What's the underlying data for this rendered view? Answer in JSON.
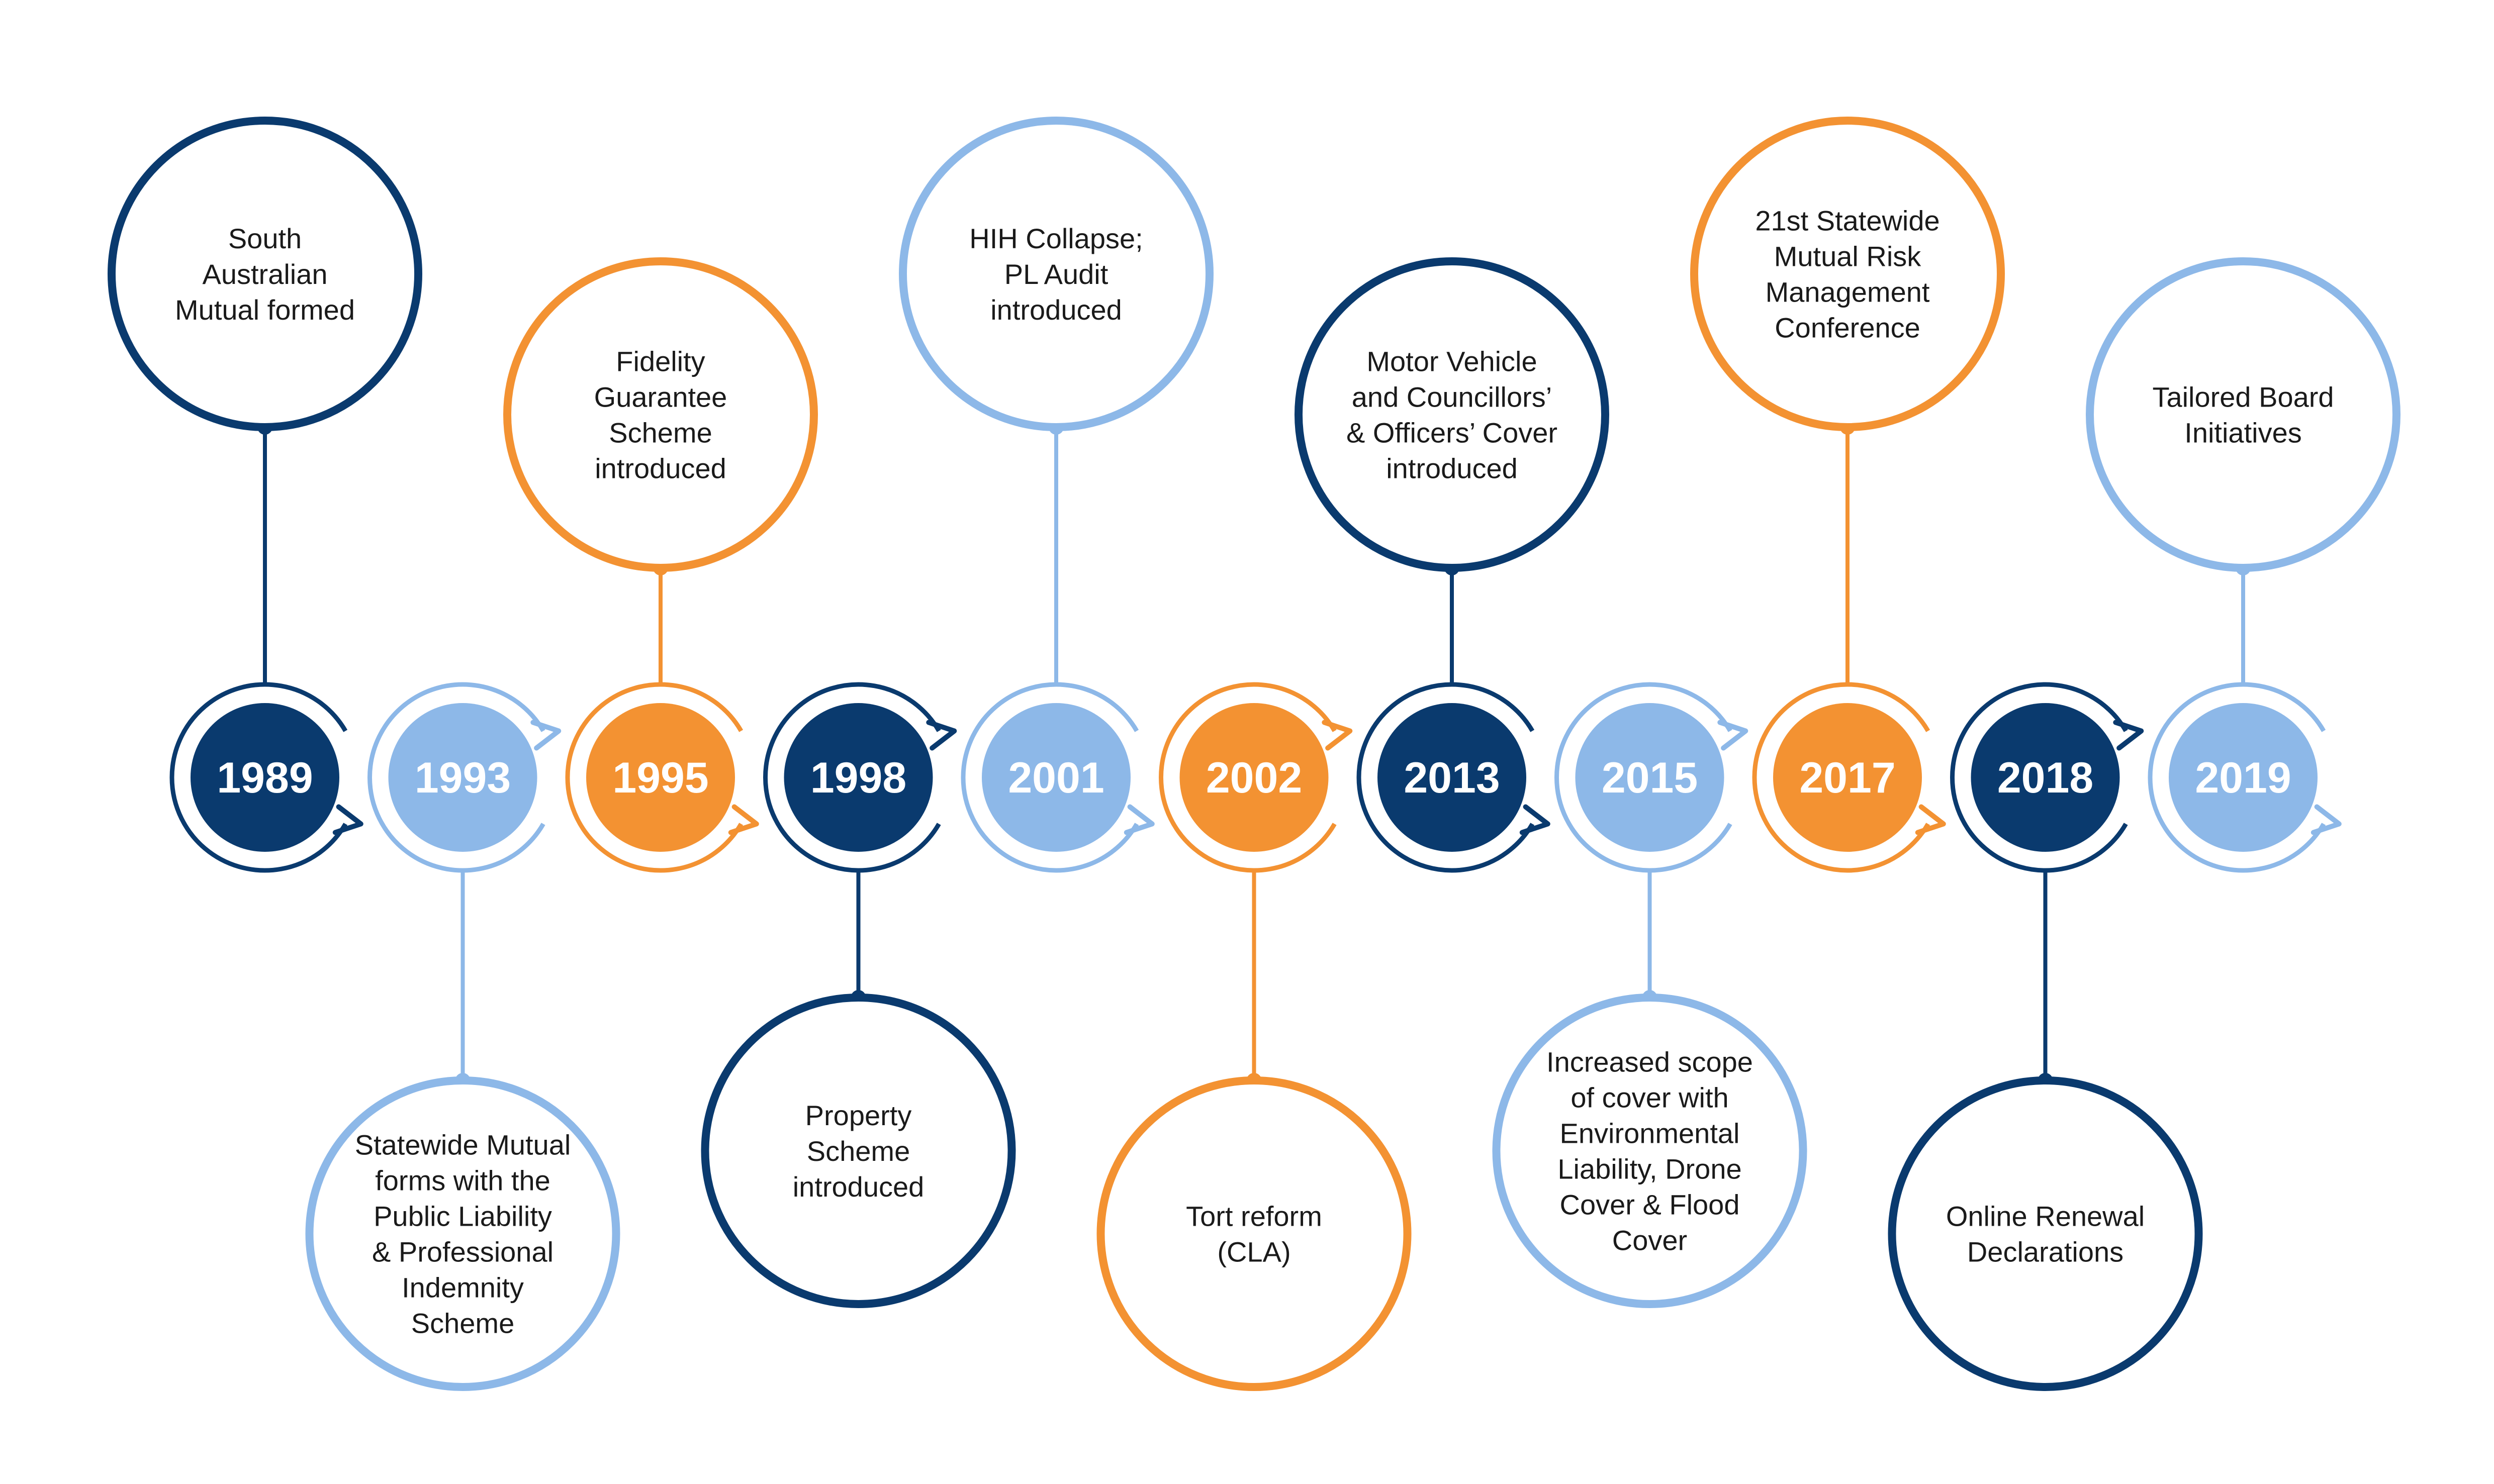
{
  "colors": {
    "dark_blue": "#0a3a6e",
    "light_blue": "#8db8e8",
    "orange": "#f39232",
    "text": "#1a1a1a",
    "background": "#ffffff"
  },
  "milestones": [
    {
      "year": "1989",
      "color": "dark_blue",
      "position": "top",
      "lines": [
        "South",
        "Australian",
        "Mutual formed"
      ]
    },
    {
      "year": "1993",
      "color": "light_blue",
      "position": "bottom",
      "lines": [
        "Statewide Mutual",
        "forms with the",
        "Public Liability",
        "& Professional",
        "Indemnity",
        "Scheme"
      ]
    },
    {
      "year": "1995",
      "color": "orange",
      "position": "top",
      "lines": [
        "Fidelity",
        "Guarantee",
        "Scheme",
        "introduced"
      ]
    },
    {
      "year": "1998",
      "color": "dark_blue",
      "position": "bottom",
      "lines": [
        "Property",
        "Scheme",
        "introduced"
      ]
    },
    {
      "year": "2001",
      "color": "light_blue",
      "position": "top",
      "lines": [
        "HIH Collapse;",
        "PL Audit",
        "introduced"
      ]
    },
    {
      "year": "2002",
      "color": "orange",
      "position": "bottom",
      "lines": [
        "Tort reform",
        "(CLA)"
      ]
    },
    {
      "year": "2013",
      "color": "dark_blue",
      "position": "top",
      "lines": [
        "Motor Vehicle",
        "and Councillors’",
        "& Officers’ Cover",
        "introduced"
      ]
    },
    {
      "year": "2015",
      "color": "light_blue",
      "position": "bottom",
      "lines": [
        "Increased scope",
        "of cover with",
        "Environmental",
        "Liability, Drone",
        "Cover & Flood",
        "Cover"
      ]
    },
    {
      "year": "2017",
      "color": "orange",
      "position": "top",
      "lines": [
        "21st Statewide",
        "Mutual Risk",
        "Management",
        "Conference"
      ]
    },
    {
      "year": "2018",
      "color": "dark_blue",
      "position": "bottom",
      "lines": [
        "Online Renewal",
        "Declarations"
      ]
    },
    {
      "year": "2019",
      "color": "light_blue",
      "position": "top",
      "lines": [
        "Tailored Board",
        "Initiatives"
      ]
    }
  ]
}
